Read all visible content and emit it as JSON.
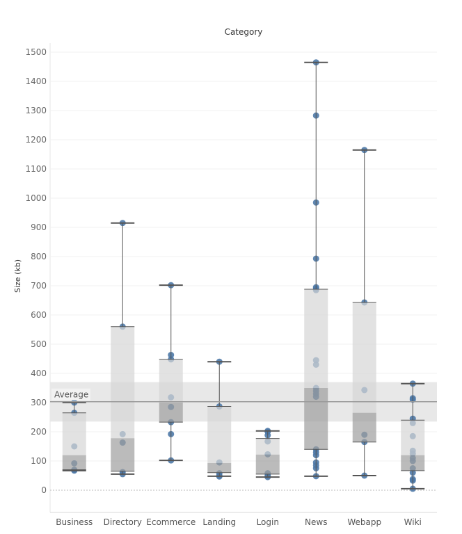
{
  "chart_data": {
    "type": "boxplot",
    "title": "Category",
    "xlabel": "",
    "ylabel": "Size (kb)",
    "ylim": [
      -80,
      1520
    ],
    "yticks": [
      0,
      100,
      200,
      300,
      400,
      500,
      600,
      700,
      800,
      900,
      1000,
      1100,
      1200,
      1300,
      1400,
      1500
    ],
    "grid": true,
    "point_color": "#4e79a7",
    "reference_band": {
      "label": "Average",
      "value": 303,
      "band": [
        235,
        370
      ]
    },
    "categories": [
      "Business",
      "Directory",
      "Ecommerce",
      "Landing",
      "Login",
      "News",
      "Webapp",
      "Wiki"
    ],
    "series": [
      {
        "category": "Business",
        "box": {
          "low": 67,
          "q1": 70,
          "median": 120,
          "q3": 265,
          "high": 300
        },
        "points": [
          300,
          265,
          150,
          92,
          70,
          67
        ]
      },
      {
        "category": "Directory",
        "box": {
          "low": 55,
          "q1": 65,
          "median": 178,
          "q3": 560,
          "high": 915
        },
        "points": [
          915,
          560,
          192,
          163,
          62,
          55
        ]
      },
      {
        "category": "Ecommerce",
        "box": {
          "low": 102,
          "q1": 233,
          "median": 300,
          "q3": 448,
          "high": 702
        },
        "points": [
          702,
          463,
          448,
          318,
          285,
          233,
          192,
          102
        ]
      },
      {
        "category": "Landing",
        "box": {
          "low": 48,
          "q1": 60,
          "median": 93,
          "q3": 287,
          "high": 440
        },
        "points": [
          440,
          287,
          95,
          58,
          50,
          47
        ]
      },
      {
        "category": "Login",
        "box": {
          "low": 45,
          "q1": 55,
          "median": 122,
          "q3": 177,
          "high": 203
        },
        "points": [
          203,
          200,
          188,
          167,
          123,
          58,
          50,
          45
        ]
      },
      {
        "category": "News",
        "box": {
          "low": 48,
          "q1": 140,
          "median": 350,
          "q3": 688,
          "high": 1465
        },
        "points": [
          1465,
          1283,
          985,
          793,
          695,
          690,
          685,
          445,
          430,
          350,
          340,
          330,
          320,
          140,
          130,
          120,
          95,
          85,
          75,
          48
        ]
      },
      {
        "category": "Webapp",
        "box": {
          "low": 50,
          "q1": 165,
          "median": 265,
          "q3": 643,
          "high": 1165
        },
        "points": [
          1165,
          643,
          343,
          190,
          165,
          50
        ]
      },
      {
        "category": "Wiki",
        "box": {
          "low": 5,
          "q1": 67,
          "median": 120,
          "q3": 240,
          "high": 365
        },
        "points": [
          365,
          315,
          310,
          245,
          230,
          185,
          135,
          125,
          110,
          100,
          75,
          60,
          38,
          33,
          5
        ]
      }
    ]
  }
}
